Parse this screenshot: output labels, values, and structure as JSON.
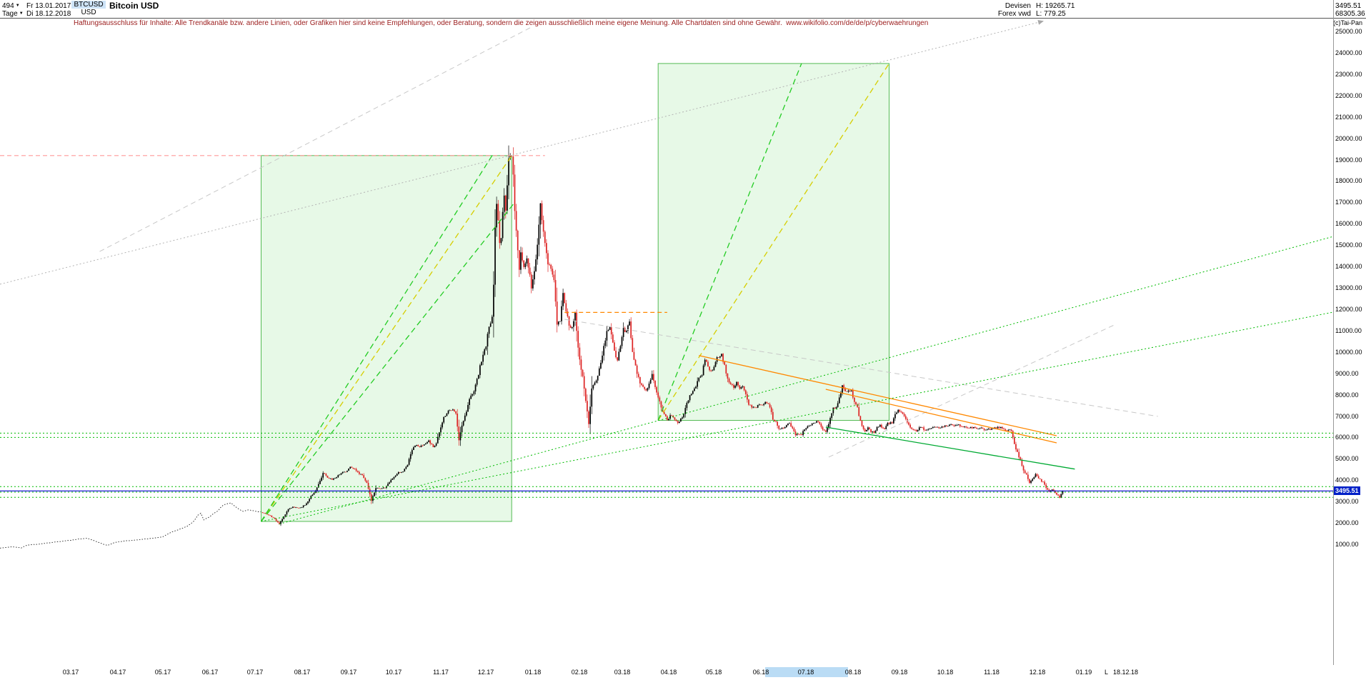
{
  "colors": {
    "up_candle": "#000000",
    "down_candle": "#dd2222",
    "box_fill": "rgba(160,230,160,0.25)",
    "box_stroke": "#55bb55",
    "price_line": "#0000cc",
    "disclaimer": "#9b1c1c",
    "axis_highlight": "#badcf5",
    "price_tag_bg": "#0020c8"
  },
  "header": {
    "bars": "494",
    "unit": "Tage",
    "from": "Fr 13.01.2017",
    "to": "Di 18.12.2018",
    "symbol": "BTCUSD",
    "currency": "USD",
    "title": "Bitcoin USD",
    "market": "Devisen",
    "feed": "Forex vwd",
    "high": "H: 19265.71",
    "low": "L: 779.25",
    "last": "3495.51",
    "volume": "68305.36",
    "copyright": "(c)Tai-Pan"
  },
  "disclaimer": {
    "text": "Haftungsausschluss für Inhalte: Alle Trendkanäle bzw. andere Linien, oder Grafiken hier sind keine Empfehlungen, oder Beratung, sondern die zeigen ausschließlich meine eigene Meinung. Alle Chartdaten sind ohne Gewähr.",
    "url": "www.wikifolio.com/de/de/p/cyberwaehrungen"
  },
  "chart_data": {
    "type": "candlestick",
    "title": "Bitcoin USD",
    "symbol": "BTCUSD",
    "period": {
      "bars": 494,
      "unit": "Tage",
      "from": "13.01.2017",
      "to": "18.12.2018"
    },
    "stats": {
      "high": 19265.71,
      "low": 779.25,
      "last": 3495.51,
      "volume": "68305.36"
    },
    "y_axis": {
      "min": 1000,
      "max": 25000,
      "step": 1000,
      "unit": "USD"
    },
    "current_price": 3495.51,
    "line_series_until_day": 173,
    "last_day": 704,
    "x_axis": {
      "months": [
        [
          "03.17",
          47
        ],
        [
          "04.17",
          78
        ],
        [
          "05.17",
          108
        ],
        [
          "06.17",
          139
        ],
        [
          "07.17",
          169
        ],
        [
          "08.17",
          200
        ],
        [
          "09.17",
          231
        ],
        [
          "10.17",
          261
        ],
        [
          "11.17",
          292
        ],
        [
          "12.17",
          322
        ],
        [
          "01.18",
          353
        ],
        [
          "02.18",
          384
        ],
        [
          "03.18",
          412
        ],
        [
          "04.18",
          443
        ],
        [
          "05.18",
          473
        ],
        [
          "06.18",
          504
        ],
        [
          "07.18",
          534
        ],
        [
          "08.18",
          565
        ],
        [
          "09.18",
          596
        ],
        [
          "10.18",
          626
        ],
        [
          "11.18",
          657
        ],
        [
          "12.18",
          687
        ],
        [
          "01.19",
          718
        ]
      ],
      "end_marker": {
        "label": "L",
        "date": "18.12.18"
      },
      "highlight_band": {
        "from_day": 507,
        "to_day": 562
      }
    },
    "keyframes": [
      [
        0,
        820
      ],
      [
        8,
        880
      ],
      [
        14,
        830
      ],
      [
        18,
        965
      ],
      [
        26,
        1010
      ],
      [
        34,
        1080
      ],
      [
        42,
        1150
      ],
      [
        47,
        1190
      ],
      [
        53,
        1250
      ],
      [
        58,
        1280
      ],
      [
        63,
        1150
      ],
      [
        68,
        1020
      ],
      [
        71,
        945
      ],
      [
        76,
        1080
      ],
      [
        82,
        1150
      ],
      [
        88,
        1190
      ],
      [
        95,
        1240
      ],
      [
        101,
        1280
      ],
      [
        108,
        1350
      ],
      [
        113,
        1550
      ],
      [
        119,
        1700
      ],
      [
        124,
        1850
      ],
      [
        128,
        2050
      ],
      [
        131,
        2350
      ],
      [
        133,
        2450
      ],
      [
        135,
        2150
      ],
      [
        139,
        2300
      ],
      [
        144,
        2550
      ],
      [
        148,
        2850
      ],
      [
        153,
        2950
      ],
      [
        157,
        2700
      ],
      [
        161,
        2550
      ],
      [
        165,
        2600
      ],
      [
        169,
        2550
      ],
      [
        173,
        2500
      ],
      [
        177,
        2400
      ],
      [
        181,
        2250
      ],
      [
        185,
        1950
      ],
      [
        188,
        2300
      ],
      [
        191,
        2650
      ],
      [
        194,
        2750
      ],
      [
        197,
        2700
      ],
      [
        200,
        2750
      ],
      [
        203,
        2900
      ],
      [
        206,
        3250
      ],
      [
        209,
        3500
      ],
      [
        212,
        3950
      ],
      [
        214,
        4350
      ],
      [
        217,
        4100
      ],
      [
        220,
        4050
      ],
      [
        223,
        4150
      ],
      [
        226,
        4350
      ],
      [
        229,
        4400
      ],
      [
        232,
        4600
      ],
      [
        235,
        4550
      ],
      [
        237,
        4350
      ],
      [
        240,
        4250
      ],
      [
        243,
        3850
      ],
      [
        246,
        3050
      ],
      [
        249,
        3650
      ],
      [
        252,
        3600
      ],
      [
        255,
        3650
      ],
      [
        258,
        3900
      ],
      [
        261,
        4150
      ],
      [
        264,
        4350
      ],
      [
        267,
        4400
      ],
      [
        270,
        4750
      ],
      [
        273,
        5450
      ],
      [
        275,
        5650
      ],
      [
        278,
        5550
      ],
      [
        281,
        5650
      ],
      [
        284,
        5850
      ],
      [
        287,
        5550
      ],
      [
        289,
        5750
      ],
      [
        292,
        6450
      ],
      [
        294,
        6950
      ],
      [
        297,
        7250
      ],
      [
        300,
        7350
      ],
      [
        302,
        7100
      ],
      [
        304,
        5900
      ],
      [
        306,
        6550
      ],
      [
        309,
        7250
      ],
      [
        311,
        7850
      ],
      [
        314,
        8150
      ],
      [
        317,
        8950
      ],
      [
        318,
        9350
      ],
      [
        320,
        9850
      ],
      [
        322,
        10300
      ],
      [
        323,
        10900
      ],
      [
        325,
        11300
      ],
      [
        326,
        11600
      ],
      [
        327,
        13200
      ],
      [
        328,
        15800
      ],
      [
        329,
        16900
      ],
      [
        330,
        16200
      ],
      [
        331,
        15000
      ],
      [
        332,
        15350
      ],
      [
        333,
        16450
      ],
      [
        334,
        17400
      ],
      [
        335,
        16550
      ],
      [
        336,
        17800
      ],
      [
        337,
        18950
      ],
      [
        339,
        19200
      ],
      [
        340,
        18200
      ],
      [
        341,
        16700
      ],
      [
        342,
        15650
      ],
      [
        344,
        13800
      ],
      [
        345,
        14600
      ],
      [
        347,
        14000
      ],
      [
        349,
        14400
      ],
      [
        351,
        13550
      ],
      [
        352,
        12900
      ],
      [
        354,
        13750
      ],
      [
        356,
        14950
      ],
      [
        358,
        16950
      ],
      [
        359,
        16150
      ],
      [
        361,
        15000
      ],
      [
        363,
        14200
      ],
      [
        365,
        13800
      ],
      [
        367,
        13350
      ],
      [
        369,
        11300
      ],
      [
        371,
        11500
      ],
      [
        373,
        12800
      ],
      [
        375,
        11900
      ],
      [
        377,
        11250
      ],
      [
        379,
        11100
      ],
      [
        381,
        11800
      ],
      [
        383,
        10250
      ],
      [
        385,
        9150
      ],
      [
        386,
        8850
      ],
      [
        388,
        7750
      ],
      [
        390,
        6600
      ],
      [
        392,
        8250
      ],
      [
        394,
        8550
      ],
      [
        396,
        8900
      ],
      [
        398,
        9450
      ],
      [
        400,
        10250
      ],
      [
        402,
        10950
      ],
      [
        404,
        11200
      ],
      [
        406,
        10450
      ],
      [
        408,
        9750
      ],
      [
        409,
        9650
      ],
      [
        411,
        10350
      ],
      [
        413,
        11050
      ],
      [
        415,
        10950
      ],
      [
        417,
        11500
      ],
      [
        419,
        9950
      ],
      [
        421,
        9300
      ],
      [
        422,
        9000
      ],
      [
        424,
        8550
      ],
      [
        426,
        8350
      ],
      [
        428,
        8150
      ],
      [
        430,
        8550
      ],
      [
        432,
        8950
      ],
      [
        434,
        8350
      ],
      [
        436,
        7850
      ],
      [
        438,
        7450
      ],
      [
        440,
        7050
      ],
      [
        442,
        6850
      ],
      [
        444,
        7000
      ],
      [
        446,
        6950
      ],
      [
        448,
        6750
      ],
      [
        449,
        6650
      ],
      [
        451,
        6850
      ],
      [
        453,
        7050
      ],
      [
        455,
        7600
      ],
      [
        457,
        7950
      ],
      [
        459,
        8150
      ],
      [
        461,
        8350
      ],
      [
        463,
        8850
      ],
      [
        465,
        8950
      ],
      [
        467,
        9650
      ],
      [
        469,
        9350
      ],
      [
        471,
        9050
      ],
      [
        473,
        9250
      ],
      [
        475,
        9700
      ],
      [
        478,
        9850
      ],
      [
        480,
        9350
      ],
      [
        482,
        8750
      ],
      [
        484,
        8450
      ],
      [
        486,
        8350
      ],
      [
        488,
        8550
      ],
      [
        490,
        8250
      ],
      [
        492,
        8450
      ],
      [
        494,
        8050
      ],
      [
        496,
        7550
      ],
      [
        498,
        7450
      ],
      [
        500,
        7350
      ],
      [
        502,
        7500
      ],
      [
        504,
        7500
      ],
      [
        506,
        7600
      ],
      [
        508,
        7650
      ],
      [
        510,
        7450
      ],
      [
        512,
        6850
      ],
      [
        514,
        6750
      ],
      [
        516,
        6400
      ],
      [
        518,
        6500
      ],
      [
        520,
        6450
      ],
      [
        522,
        6700
      ],
      [
        524,
        6550
      ],
      [
        526,
        6250
      ],
      [
        527,
        6100
      ],
      [
        529,
        6200
      ],
      [
        531,
        6150
      ],
      [
        533,
        6400
      ],
      [
        535,
        6550
      ],
      [
        537,
        6600
      ],
      [
        539,
        6700
      ],
      [
        541,
        6750
      ],
      [
        543,
        6650
      ],
      [
        545,
        6350
      ],
      [
        547,
        6250
      ],
      [
        549,
        6650
      ],
      [
        551,
        7150
      ],
      [
        552,
        7350
      ],
      [
        554,
        7450
      ],
      [
        556,
        7850
      ],
      [
        558,
        8400
      ],
      [
        560,
        8150
      ],
      [
        562,
        8250
      ],
      [
        564,
        8150
      ],
      [
        566,
        7650
      ],
      [
        568,
        7400
      ],
      [
        569,
        7000
      ],
      [
        571,
        6550
      ],
      [
        573,
        6300
      ],
      [
        575,
        6450
      ],
      [
        577,
        6250
      ],
      [
        579,
        6250
      ],
      [
        581,
        6450
      ],
      [
        583,
        6550
      ],
      [
        584,
        6500
      ],
      [
        586,
        6400
      ],
      [
        588,
        6650
      ],
      [
        591,
        6700
      ],
      [
        593,
        7050
      ],
      [
        595,
        7300
      ],
      [
        597,
        7200
      ],
      [
        599,
        6950
      ],
      [
        601,
        6700
      ],
      [
        603,
        6500
      ],
      [
        605,
        6350
      ],
      [
        607,
        6300
      ],
      [
        609,
        6450
      ],
      [
        611,
        6500
      ],
      [
        613,
        6300
      ],
      [
        614,
        6350
      ],
      [
        616,
        6400
      ],
      [
        618,
        6450
      ],
      [
        620,
        6500
      ],
      [
        622,
        6450
      ],
      [
        624,
        6500
      ],
      [
        626,
        6550
      ],
      [
        628,
        6550
      ],
      [
        630,
        6600
      ],
      [
        632,
        6550
      ],
      [
        634,
        6600
      ],
      [
        637,
        6550
      ],
      [
        639,
        6500
      ],
      [
        641,
        6450
      ],
      [
        643,
        6500
      ],
      [
        645,
        6450
      ],
      [
        647,
        6400
      ],
      [
        649,
        6450
      ],
      [
        651,
        6400
      ],
      [
        653,
        6350
      ],
      [
        655,
        6400
      ],
      [
        657,
        6400
      ],
      [
        659,
        6450
      ],
      [
        661,
        6500
      ],
      [
        663,
        6450
      ],
      [
        665,
        6400
      ],
      [
        667,
        6350
      ],
      [
        669,
        6400
      ],
      [
        670,
        6350
      ],
      [
        672,
        5650
      ],
      [
        674,
        5300
      ],
      [
        676,
        4900
      ],
      [
        678,
        4450
      ],
      [
        680,
        4250
      ],
      [
        682,
        3850
      ],
      [
        684,
        4050
      ],
      [
        686,
        4250
      ],
      [
        688,
        4100
      ],
      [
        690,
        3950
      ],
      [
        691,
        3900
      ],
      [
        693,
        3650
      ],
      [
        695,
        3450
      ],
      [
        697,
        3550
      ],
      [
        699,
        3400
      ],
      [
        701,
        3300
      ],
      [
        702,
        3200
      ],
      [
        703,
        3380
      ],
      [
        704,
        3495.51
      ]
    ],
    "boxes": [
      {
        "d1": 173,
        "p1": 2070,
        "d2": 339,
        "p2": 19190
      },
      {
        "d1": 436,
        "p1": 6800,
        "d2": 589,
        "p2": 23500
      }
    ],
    "trend_lines": [
      {
        "d1": 66,
        "p1": 14700,
        "d2": 352,
        "p2": 25200,
        "c": "#c8c8c8",
        "w": 1,
        "dash": "7 5"
      },
      {
        "d1": 0,
        "p1": 13170,
        "d2": 691,
        "p2": 25480,
        "c": "#b4b4b4",
        "w": 1,
        "dash": "2 3",
        "arrow": true
      },
      {
        "d1": 374,
        "p1": 11530,
        "d2": 767,
        "p2": 6985,
        "c": "#c8c8c8",
        "w": 1,
        "dash": "7 5"
      },
      {
        "d1": 549,
        "p1": 5080,
        "d2": 738,
        "p2": 11260,
        "c": "#c8c8c8",
        "w": 1,
        "dash": "7 5"
      },
      {
        "d1": 173,
        "p1": 2070,
        "d2": 339,
        "p2": 19190,
        "c": "#d6ce00",
        "w": 1.3,
        "dash": "8 5"
      },
      {
        "d1": 173,
        "p1": 2070,
        "d2": 326,
        "p2": 19190,
        "c": "#22cc22",
        "w": 1.3,
        "dash": "8 5"
      },
      {
        "d1": 173,
        "p1": 2070,
        "d2": 341,
        "p2": 17000,
        "c": "#22cc22",
        "w": 1.3,
        "dash": "8 5"
      },
      {
        "d1": 436,
        "p1": 6800,
        "d2": 589,
        "p2": 23500,
        "c": "#d6ce00",
        "w": 1.3,
        "dash": "8 5"
      },
      {
        "d1": 436,
        "p1": 6800,
        "d2": 531,
        "p2": 23500,
        "c": "#22cc22",
        "w": 1.3,
        "dash": "8 5"
      },
      {
        "d1": 463,
        "p1": 9830,
        "d2": 700,
        "p2": 6080,
        "c": "#ff8800",
        "w": 1.3
      },
      {
        "d1": 547,
        "p1": 8255,
        "d2": 700,
        "p2": 5745,
        "c": "#ff8800",
        "w": 1.3
      },
      {
        "d1": 547,
        "p1": 6483,
        "d2": 712,
        "p2": 4520,
        "c": "#00aa33",
        "w": 1.3
      },
      {
        "d1": 173,
        "p1": 2070,
        "d2": 883,
        "p2": 11860,
        "c": "#00bb00",
        "w": 1,
        "dash": "2 3"
      },
      {
        "d1": 185,
        "p1": 1950,
        "d2": 883,
        "p2": 15400,
        "c": "#00bb00",
        "w": 1,
        "dash": "2 3"
      }
    ],
    "h_lines": [
      {
        "p": 19190,
        "d1": 0,
        "d2": 361,
        "c": "#ff9999",
        "dash": "6 4",
        "w": 1.2
      },
      {
        "p": 11850,
        "d1": 374,
        "d2": 442,
        "c": "#ff8800",
        "dash": "6 4",
        "w": 1.2
      },
      {
        "p": 6200,
        "c": "#00bb00",
        "dash": "2 3",
        "w": 1
      },
      {
        "p": 6000,
        "c": "#00bb00",
        "dash": "2 3",
        "w": 1
      },
      {
        "p": 3700,
        "c": "#00bb00",
        "dash": "2 3",
        "w": 1
      },
      {
        "p": 3440,
        "c": "#00bb00",
        "dash": "2 3",
        "w": 1
      },
      {
        "p": 3200,
        "c": "#00bb00",
        "dash": "2 3",
        "w": 1
      }
    ]
  }
}
